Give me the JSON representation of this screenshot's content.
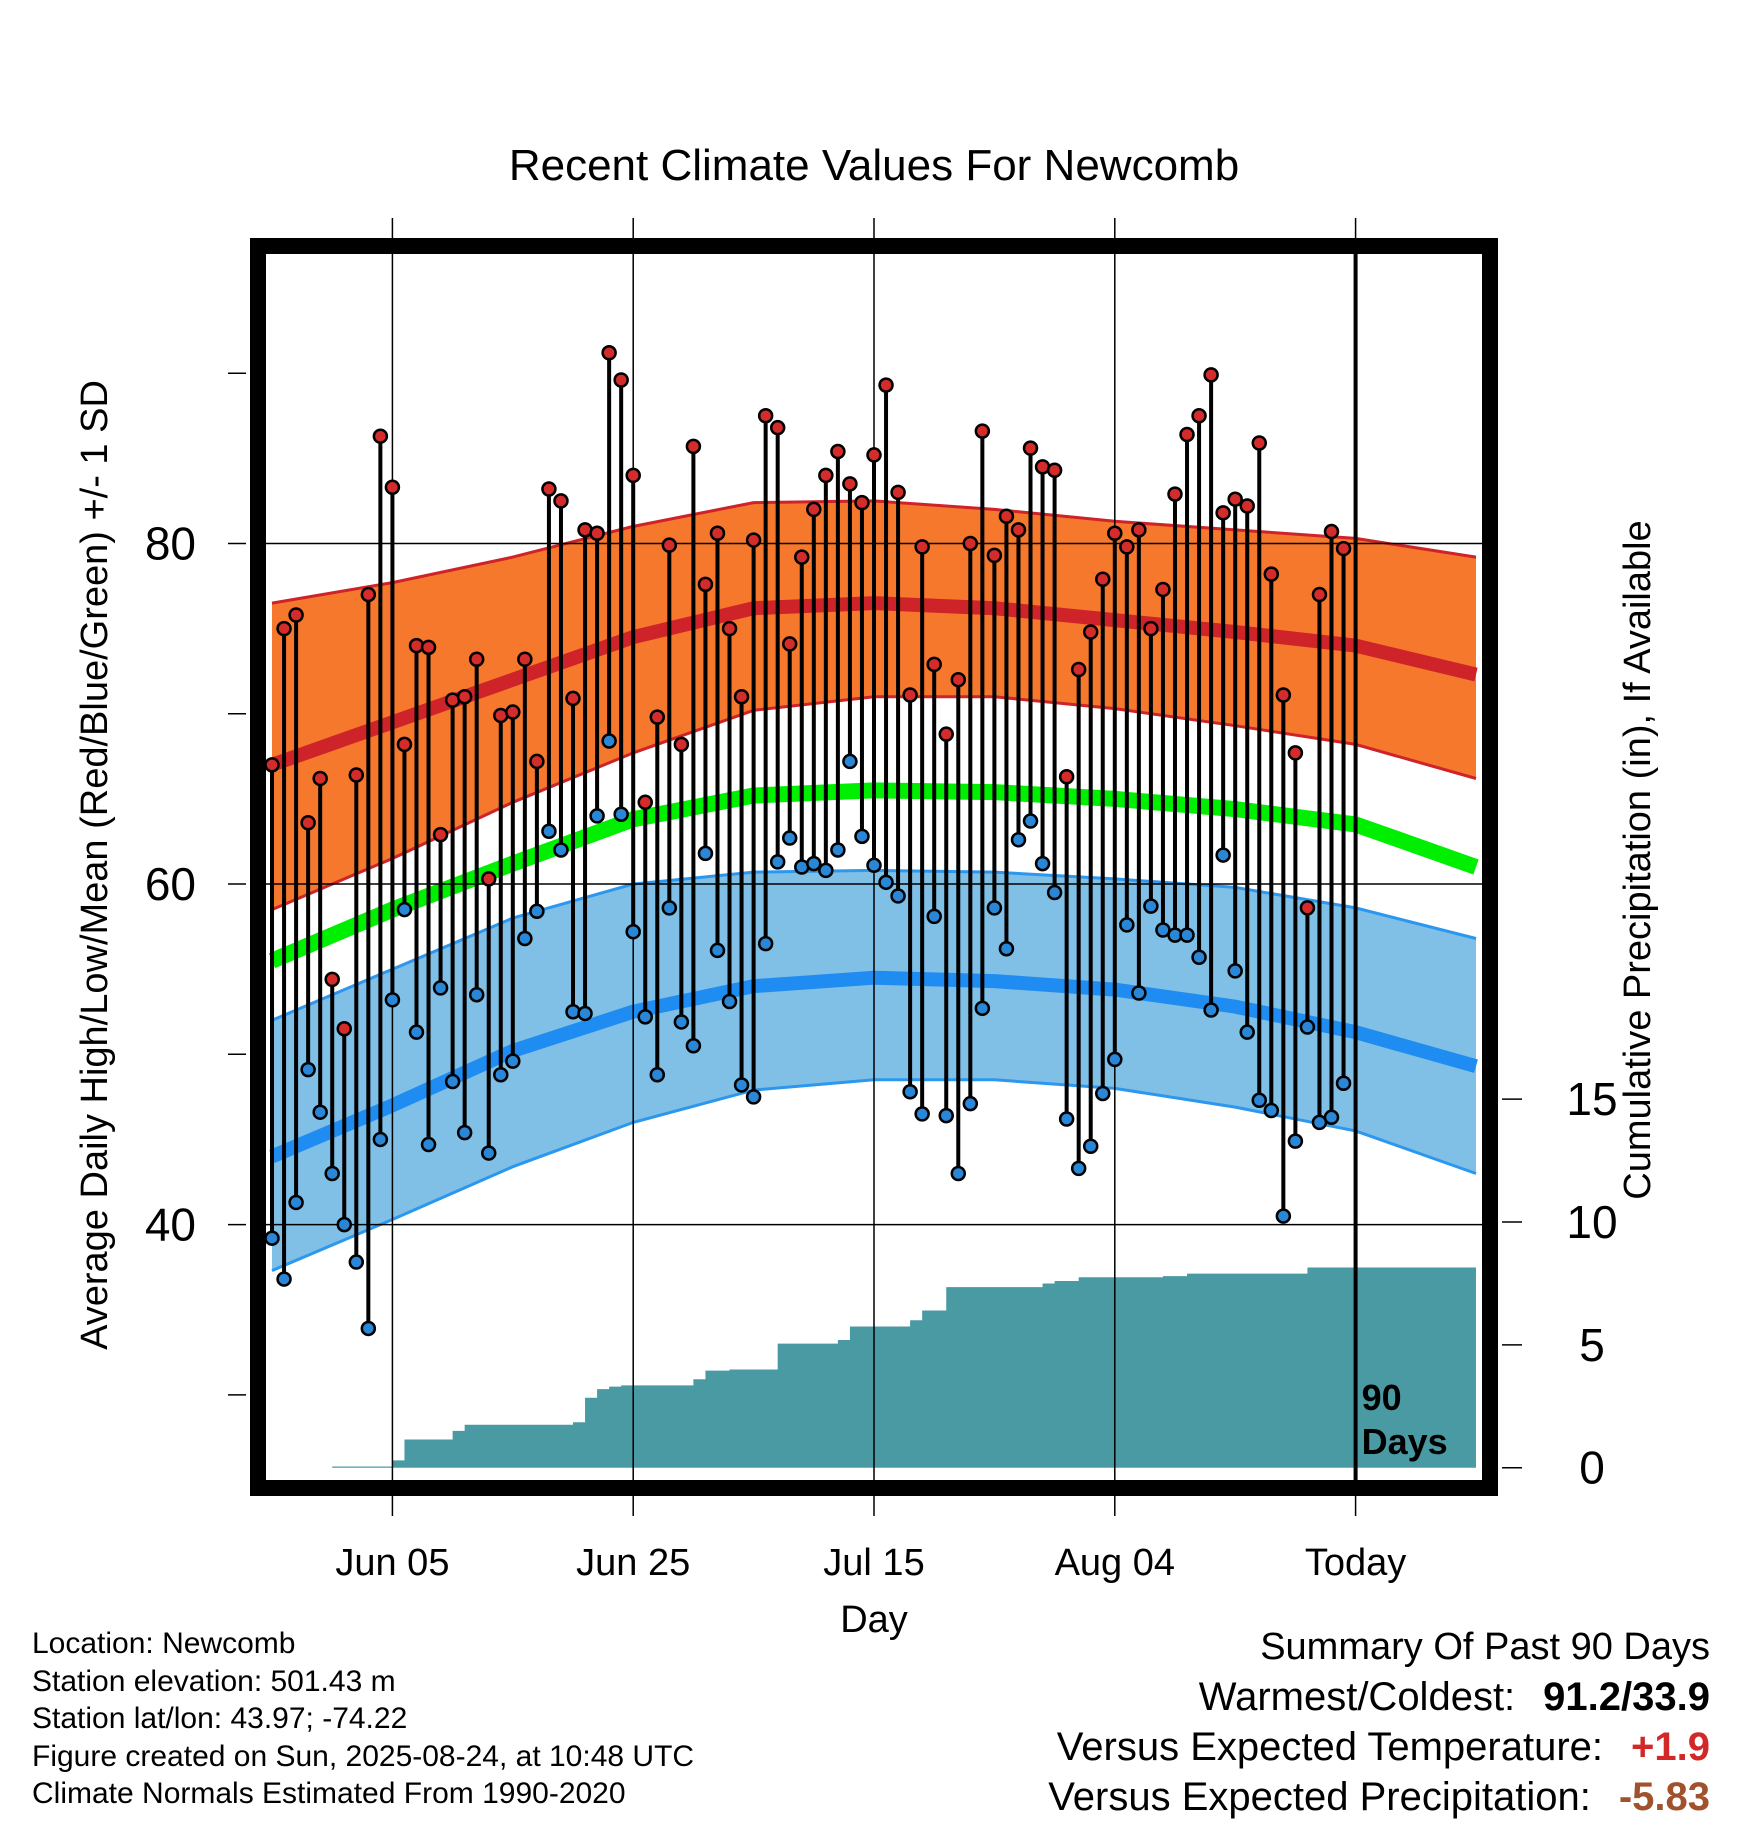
{
  "chart_data": {
    "type": "line",
    "title": "Recent Climate Values For Newcomb",
    "xlabel": "Day",
    "ylabel": "Average Daily High/Low/Mean (Red/Blue/Green) +/- 1 SD",
    "y2label": "Cumulative Precipitation (in), If Available",
    "x_tick_labels": [
      "Jun 05",
      "Jun 25",
      "Jul 15",
      "Aug 04",
      "Today"
    ],
    "x_tick_days": [
      10,
      30,
      50,
      70,
      90
    ],
    "y_tick_labels": [
      "40",
      "60",
      "80"
    ],
    "y_ticks": [
      40,
      60,
      80
    ],
    "y_minor_ticks": [
      30,
      50,
      70,
      90
    ],
    "ylim": [
      25,
      97
    ],
    "xlim": [
      -0.5,
      100.5
    ],
    "y2_tick_labels": [
      "0",
      "5",
      "10",
      "15"
    ],
    "y2_ticks": [
      0,
      5,
      10,
      15
    ],
    "y2lim": [
      -0.5,
      49.4
    ],
    "today_label": "90\nDays",
    "today_day": 90,
    "grid": true,
    "colors": {
      "high_band": "#f5782d",
      "high_line": "#cd2329",
      "low_band": "#80bfe6",
      "low_edge": "#2b97ee",
      "low_line": "#1f8cf2",
      "mean_line": "#00ee00",
      "precip": "#4a9aa4",
      "high_dot": "#d42b2b",
      "low_dot": "#2a86d6"
    },
    "normals": {
      "days": [
        0,
        10,
        20,
        30,
        40,
        50,
        60,
        70,
        80,
        90,
        100
      ],
      "high_mean": [
        67.0,
        69.5,
        72.0,
        74.5,
        76.2,
        76.5,
        76.2,
        75.5,
        74.8,
        74.0,
        72.3
      ],
      "high_upper": [
        76.5,
        77.7,
        79.2,
        81.0,
        82.4,
        82.5,
        82.0,
        81.3,
        80.8,
        80.3,
        79.2
      ],
      "high_lower": [
        58.5,
        61.5,
        64.8,
        67.7,
        70.2,
        71.0,
        71.0,
        70.3,
        69.3,
        68.2,
        66.2
      ],
      "mean": [
        55.5,
        58.5,
        61.2,
        63.8,
        65.2,
        65.5,
        65.4,
        65.0,
        64.4,
        63.5,
        61.0
      ],
      "low_mean": [
        44.0,
        47.0,
        50.2,
        52.5,
        54.0,
        54.5,
        54.3,
        53.8,
        52.8,
        51.3,
        49.3
      ],
      "low_upper": [
        52.0,
        55.0,
        58.0,
        60.0,
        60.7,
        60.8,
        60.7,
        60.3,
        59.8,
        58.6,
        56.8
      ],
      "low_lower": [
        37.3,
        40.3,
        43.4,
        46.0,
        47.9,
        48.5,
        48.5,
        48.0,
        46.9,
        45.5,
        43.0
      ]
    },
    "series": [
      {
        "name": "High",
        "values": [
          67.0,
          75.0,
          75.8,
          63.6,
          66.2,
          54.4,
          51.5,
          66.4,
          77.0,
          86.3,
          83.3,
          68.2,
          74.0,
          73.9,
          62.9,
          70.8,
          71.0,
          73.2,
          60.3,
          69.9,
          70.1,
          73.2,
          67.2,
          83.2,
          82.5,
          70.9,
          80.8,
          80.6,
          91.2,
          89.6,
          84.0,
          64.8,
          69.8,
          79.9,
          68.2,
          85.7,
          77.6,
          80.6,
          75.0,
          71.0,
          80.2,
          87.5,
          86.8,
          74.1,
          79.2,
          82.0,
          84.0,
          85.4,
          83.5,
          82.4,
          85.2,
          89.3,
          83.0,
          71.1,
          79.8,
          72.9,
          68.8,
          72.0,
          80.0,
          86.6,
          79.3,
          81.6,
          80.8,
          85.6,
          84.5,
          84.3,
          66.3,
          72.6,
          74.8,
          77.9,
          80.6,
          79.8,
          80.8,
          75.0,
          77.3,
          82.9,
          86.4,
          87.5,
          89.9,
          81.8,
          82.6,
          82.2,
          85.9,
          78.2,
          71.1,
          67.7,
          58.6,
          77.0,
          80.7,
          79.7
        ]
      },
      {
        "name": "Low",
        "values": [
          39.2,
          36.8,
          41.3,
          49.1,
          46.6,
          43.0,
          40.0,
          37.8,
          33.9,
          45.0,
          53.2,
          58.5,
          51.3,
          44.7,
          53.9,
          48.4,
          45.4,
          53.5,
          44.2,
          48.8,
          49.6,
          56.8,
          58.4,
          63.1,
          62.0,
          52.5,
          52.4,
          64.0,
          68.4,
          64.1,
          57.2,
          52.2,
          48.8,
          58.6,
          51.9,
          50.5,
          61.8,
          56.1,
          53.1,
          48.2,
          47.5,
          56.5,
          61.3,
          62.7,
          61.0,
          61.2,
          60.8,
          62.0,
          67.2,
          62.8,
          61.1,
          60.1,
          59.3,
          47.8,
          46.5,
          58.1,
          46.4,
          43.0,
          47.1,
          52.7,
          58.6,
          56.2,
          62.6,
          63.7,
          61.2,
          59.5,
          46.2,
          43.3,
          44.6,
          47.7,
          49.7,
          57.6,
          53.6,
          58.7,
          57.3,
          57.0,
          57.0,
          55.7,
          52.6,
          61.7,
          54.9,
          51.3,
          47.3,
          46.7,
          40.5,
          44.9,
          51.6,
          46.0,
          46.3,
          48.3
        ]
      },
      {
        "name": "Precipitation",
        "days": [
          5,
          10,
          11,
          13,
          15,
          16,
          25,
          26,
          27,
          28,
          29,
          31,
          35,
          36,
          38,
          41,
          42,
          46,
          47,
          48,
          50,
          53,
          54,
          55,
          56,
          58,
          59,
          61,
          63,
          64,
          65,
          67,
          69,
          71,
          72,
          74,
          76,
          78,
          80,
          82,
          84,
          86,
          88,
          90,
          92,
          94,
          96,
          98,
          100
        ],
        "values": [
          0.05,
          0.3,
          1.15,
          1.15,
          1.5,
          1.75,
          1.85,
          2.85,
          3.2,
          3.3,
          3.35,
          3.35,
          3.6,
          3.95,
          4.0,
          4.0,
          5.05,
          5.05,
          5.2,
          5.75,
          5.75,
          6.0,
          6.4,
          6.4,
          7.35,
          7.35,
          7.35,
          7.35,
          7.35,
          7.5,
          7.6,
          7.75,
          7.75,
          7.75,
          7.75,
          7.8,
          7.9,
          7.9,
          7.9,
          7.9,
          7.9,
          8.15,
          8.15,
          8.15,
          8.15,
          8.15,
          8.15,
          8.15,
          8.15
        ]
      }
    ]
  },
  "info": {
    "location": "Location: Newcomb",
    "elevation": "Station elevation: 501.43 m",
    "latlon": "Station lat/lon: 43.97; -74.22",
    "created": "Figure created on Sun, 2025-08-24, at 10:48 UTC",
    "normals": "Climate Normals Estimated From 1990-2020"
  },
  "summary": {
    "title": "Summary Of Past 90 Days",
    "warm_label": "Warmest/Coldest:",
    "warm_value": "91.2/33.9",
    "temp_label": "Versus Expected Temperature:",
    "temp_value": "+1.9",
    "temp_color": "#d22828",
    "precip_label": "Versus Expected Precipitation:",
    "precip_value": "-5.83",
    "precip_color": "#a0522d"
  }
}
